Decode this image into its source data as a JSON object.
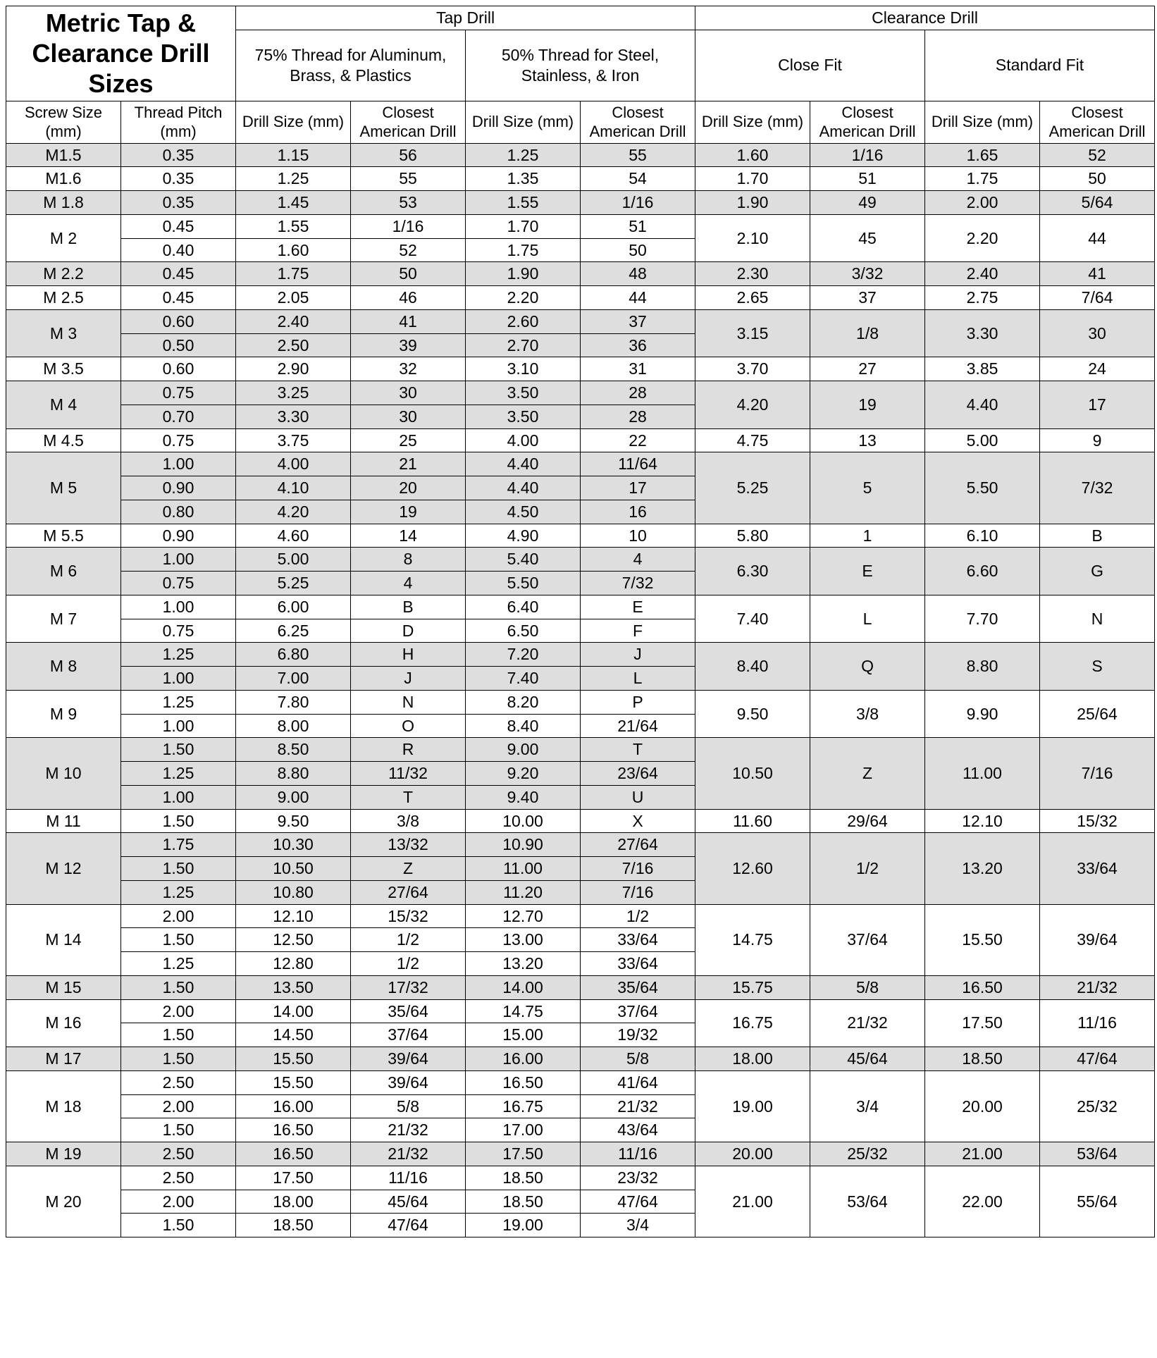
{
  "title": "Metric Tap & Clearance Drill Sizes",
  "top_headers": {
    "tap_drill": "Tap Drill",
    "clearance_drill": "Clearance Drill"
  },
  "sub_headers": {
    "thread75": "75% Thread for Aluminum, Brass, & Plastics",
    "thread50": "50% Thread for Steel, Stainless, & Iron",
    "close_fit": "Close Fit",
    "standard_fit": "Standard Fit"
  },
  "col_headers": {
    "screw_size": "Screw Size (mm)",
    "thread_pitch": "Thread Pitch (mm)",
    "drill_size": "Drill Size (mm)",
    "closest_american": "Closest American Drill"
  },
  "rows": [
    {
      "shaded": true,
      "screw": "M1.5",
      "pitches": [
        {
          "pitch": "0.35",
          "t75_size": "1.15",
          "t75_am": "56",
          "t50_size": "1.25",
          "t50_am": "55"
        }
      ],
      "close_size": "1.60",
      "close_am": "1/16",
      "std_size": "1.65",
      "std_am": "52"
    },
    {
      "shaded": false,
      "screw": "M1.6",
      "pitches": [
        {
          "pitch": "0.35",
          "t75_size": "1.25",
          "t75_am": "55",
          "t50_size": "1.35",
          "t50_am": "54"
        }
      ],
      "close_size": "1.70",
      "close_am": "51",
      "std_size": "1.75",
      "std_am": "50"
    },
    {
      "shaded": true,
      "screw": "M 1.8",
      "pitches": [
        {
          "pitch": "0.35",
          "t75_size": "1.45",
          "t75_am": "53",
          "t50_size": "1.55",
          "t50_am": "1/16"
        }
      ],
      "close_size": "1.90",
      "close_am": "49",
      "std_size": "2.00",
      "std_am": "5/64"
    },
    {
      "shaded": false,
      "screw": "M 2",
      "pitches": [
        {
          "pitch": "0.45",
          "t75_size": "1.55",
          "t75_am": "1/16",
          "t50_size": "1.70",
          "t50_am": "51"
        },
        {
          "pitch": "0.40",
          "t75_size": "1.60",
          "t75_am": "52",
          "t50_size": "1.75",
          "t50_am": "50"
        }
      ],
      "close_size": "2.10",
      "close_am": "45",
      "std_size": "2.20",
      "std_am": "44"
    },
    {
      "shaded": true,
      "screw": "M 2.2",
      "pitches": [
        {
          "pitch": "0.45",
          "t75_size": "1.75",
          "t75_am": "50",
          "t50_size": "1.90",
          "t50_am": "48"
        }
      ],
      "close_size": "2.30",
      "close_am": "3/32",
      "std_size": "2.40",
      "std_am": "41"
    },
    {
      "shaded": false,
      "screw": "M 2.5",
      "pitches": [
        {
          "pitch": "0.45",
          "t75_size": "2.05",
          "t75_am": "46",
          "t50_size": "2.20",
          "t50_am": "44"
        }
      ],
      "close_size": "2.65",
      "close_am": "37",
      "std_size": "2.75",
      "std_am": "7/64"
    },
    {
      "shaded": true,
      "screw": "M 3",
      "pitches": [
        {
          "pitch": "0.60",
          "t75_size": "2.40",
          "t75_am": "41",
          "t50_size": "2.60",
          "t50_am": "37"
        },
        {
          "pitch": "0.50",
          "t75_size": "2.50",
          "t75_am": "39",
          "t50_size": "2.70",
          "t50_am": "36"
        }
      ],
      "close_size": "3.15",
      "close_am": "1/8",
      "std_size": "3.30",
      "std_am": "30"
    },
    {
      "shaded": false,
      "screw": "M 3.5",
      "pitches": [
        {
          "pitch": "0.60",
          "t75_size": "2.90",
          "t75_am": "32",
          "t50_size": "3.10",
          "t50_am": "31"
        }
      ],
      "close_size": "3.70",
      "close_am": "27",
      "std_size": "3.85",
      "std_am": "24"
    },
    {
      "shaded": true,
      "screw": "M 4",
      "pitches": [
        {
          "pitch": "0.75",
          "t75_size": "3.25",
          "t75_am": "30",
          "t50_size": "3.50",
          "t50_am": "28"
        },
        {
          "pitch": "0.70",
          "t75_size": "3.30",
          "t75_am": "30",
          "t50_size": "3.50",
          "t50_am": "28"
        }
      ],
      "close_size": "4.20",
      "close_am": "19",
      "std_size": "4.40",
      "std_am": "17"
    },
    {
      "shaded": false,
      "screw": "M 4.5",
      "pitches": [
        {
          "pitch": "0.75",
          "t75_size": "3.75",
          "t75_am": "25",
          "t50_size": "4.00",
          "t50_am": "22"
        }
      ],
      "close_size": "4.75",
      "close_am": "13",
      "std_size": "5.00",
      "std_am": "9"
    },
    {
      "shaded": true,
      "screw": "M 5",
      "pitches": [
        {
          "pitch": "1.00",
          "t75_size": "4.00",
          "t75_am": "21",
          "t50_size": "4.40",
          "t50_am": "11/64"
        },
        {
          "pitch": "0.90",
          "t75_size": "4.10",
          "t75_am": "20",
          "t50_size": "4.40",
          "t50_am": "17"
        },
        {
          "pitch": "0.80",
          "t75_size": "4.20",
          "t75_am": "19",
          "t50_size": "4.50",
          "t50_am": "16"
        }
      ],
      "close_size": "5.25",
      "close_am": "5",
      "std_size": "5.50",
      "std_am": "7/32"
    },
    {
      "shaded": false,
      "screw": "M 5.5",
      "pitches": [
        {
          "pitch": "0.90",
          "t75_size": "4.60",
          "t75_am": "14",
          "t50_size": "4.90",
          "t50_am": "10"
        }
      ],
      "close_size": "5.80",
      "close_am": "1",
      "std_size": "6.10",
      "std_am": "B"
    },
    {
      "shaded": true,
      "screw": "M 6",
      "pitches": [
        {
          "pitch": "1.00",
          "t75_size": "5.00",
          "t75_am": "8",
          "t50_size": "5.40",
          "t50_am": "4"
        },
        {
          "pitch": "0.75",
          "t75_size": "5.25",
          "t75_am": "4",
          "t50_size": "5.50",
          "t50_am": "7/32"
        }
      ],
      "close_size": "6.30",
      "close_am": "E",
      "std_size": "6.60",
      "std_am": "G"
    },
    {
      "shaded": false,
      "screw": "M 7",
      "pitches": [
        {
          "pitch": "1.00",
          "t75_size": "6.00",
          "t75_am": "B",
          "t50_size": "6.40",
          "t50_am": "E"
        },
        {
          "pitch": "0.75",
          "t75_size": "6.25",
          "t75_am": "D",
          "t50_size": "6.50",
          "t50_am": "F"
        }
      ],
      "close_size": "7.40",
      "close_am": "L",
      "std_size": "7.70",
      "std_am": "N"
    },
    {
      "shaded": true,
      "screw": "M 8",
      "pitches": [
        {
          "pitch": "1.25",
          "t75_size": "6.80",
          "t75_am": "H",
          "t50_size": "7.20",
          "t50_am": "J"
        },
        {
          "pitch": "1.00",
          "t75_size": "7.00",
          "t75_am": "J",
          "t50_size": "7.40",
          "t50_am": "L"
        }
      ],
      "close_size": "8.40",
      "close_am": "Q",
      "std_size": "8.80",
      "std_am": "S"
    },
    {
      "shaded": false,
      "screw": "M 9",
      "pitches": [
        {
          "pitch": "1.25",
          "t75_size": "7.80",
          "t75_am": "N",
          "t50_size": "8.20",
          "t50_am": "P"
        },
        {
          "pitch": "1.00",
          "t75_size": "8.00",
          "t75_am": "O",
          "t50_size": "8.40",
          "t50_am": "21/64"
        }
      ],
      "close_size": "9.50",
      "close_am": "3/8",
      "std_size": "9.90",
      "std_am": "25/64"
    },
    {
      "shaded": true,
      "screw": "M 10",
      "pitches": [
        {
          "pitch": "1.50",
          "t75_size": "8.50",
          "t75_am": "R",
          "t50_size": "9.00",
          "t50_am": "T"
        },
        {
          "pitch": "1.25",
          "t75_size": "8.80",
          "t75_am": "11/32",
          "t50_size": "9.20",
          "t50_am": "23/64"
        },
        {
          "pitch": "1.00",
          "t75_size": "9.00",
          "t75_am": "T",
          "t50_size": "9.40",
          "t50_am": "U"
        }
      ],
      "close_size": "10.50",
      "close_am": "Z",
      "std_size": "11.00",
      "std_am": "7/16"
    },
    {
      "shaded": false,
      "screw": "M 11",
      "pitches": [
        {
          "pitch": "1.50",
          "t75_size": "9.50",
          "t75_am": "3/8",
          "t50_size": "10.00",
          "t50_am": "X"
        }
      ],
      "close_size": "11.60",
      "close_am": "29/64",
      "std_size": "12.10",
      "std_am": "15/32"
    },
    {
      "shaded": true,
      "screw": "M 12",
      "pitches": [
        {
          "pitch": "1.75",
          "t75_size": "10.30",
          "t75_am": "13/32",
          "t50_size": "10.90",
          "t50_am": "27/64"
        },
        {
          "pitch": "1.50",
          "t75_size": "10.50",
          "t75_am": "Z",
          "t50_size": "11.00",
          "t50_am": "7/16"
        },
        {
          "pitch": "1.25",
          "t75_size": "10.80",
          "t75_am": "27/64",
          "t50_size": "11.20",
          "t50_am": "7/16"
        }
      ],
      "close_size": "12.60",
      "close_am": "1/2",
      "std_size": "13.20",
      "std_am": "33/64"
    },
    {
      "shaded": false,
      "screw": "M 14",
      "pitches": [
        {
          "pitch": "2.00",
          "t75_size": "12.10",
          "t75_am": "15/32",
          "t50_size": "12.70",
          "t50_am": "1/2"
        },
        {
          "pitch": "1.50",
          "t75_size": "12.50",
          "t75_am": "1/2",
          "t50_size": "13.00",
          "t50_am": "33/64"
        },
        {
          "pitch": "1.25",
          "t75_size": "12.80",
          "t75_am": "1/2",
          "t50_size": "13.20",
          "t50_am": "33/64"
        }
      ],
      "close_size": "14.75",
      "close_am": "37/64",
      "std_size": "15.50",
      "std_am": "39/64"
    },
    {
      "shaded": true,
      "screw": "M 15",
      "pitches": [
        {
          "pitch": "1.50",
          "t75_size": "13.50",
          "t75_am": "17/32",
          "t50_size": "14.00",
          "t50_am": "35/64"
        }
      ],
      "close_size": "15.75",
      "close_am": "5/8",
      "std_size": "16.50",
      "std_am": "21/32"
    },
    {
      "shaded": false,
      "screw": "M 16",
      "pitches": [
        {
          "pitch": "2.00",
          "t75_size": "14.00",
          "t75_am": "35/64",
          "t50_size": "14.75",
          "t50_am": "37/64"
        },
        {
          "pitch": "1.50",
          "t75_size": "14.50",
          "t75_am": "37/64",
          "t50_size": "15.00",
          "t50_am": "19/32"
        }
      ],
      "close_size": "16.75",
      "close_am": "21/32",
      "std_size": "17.50",
      "std_am": "11/16"
    },
    {
      "shaded": true,
      "screw": "M 17",
      "pitches": [
        {
          "pitch": "1.50",
          "t75_size": "15.50",
          "t75_am": "39/64",
          "t50_size": "16.00",
          "t50_am": "5/8"
        }
      ],
      "close_size": "18.00",
      "close_am": "45/64",
      "std_size": "18.50",
      "std_am": "47/64"
    },
    {
      "shaded": false,
      "screw": "M 18",
      "pitches": [
        {
          "pitch": "2.50",
          "t75_size": "15.50",
          "t75_am": "39/64",
          "t50_size": "16.50",
          "t50_am": "41/64"
        },
        {
          "pitch": "2.00",
          "t75_size": "16.00",
          "t75_am": "5/8",
          "t50_size": "16.75",
          "t50_am": "21/32"
        },
        {
          "pitch": "1.50",
          "t75_size": "16.50",
          "t75_am": "21/32",
          "t50_size": "17.00",
          "t50_am": "43/64"
        }
      ],
      "close_size": "19.00",
      "close_am": "3/4",
      "std_size": "20.00",
      "std_am": "25/32"
    },
    {
      "shaded": true,
      "screw": "M 19",
      "pitches": [
        {
          "pitch": "2.50",
          "t75_size": "16.50",
          "t75_am": "21/32",
          "t50_size": "17.50",
          "t50_am": "11/16"
        }
      ],
      "close_size": "20.00",
      "close_am": "25/32",
      "std_size": "21.00",
      "std_am": "53/64"
    },
    {
      "shaded": false,
      "screw": "M 20",
      "pitches": [
        {
          "pitch": "2.50",
          "t75_size": "17.50",
          "t75_am": "11/16",
          "t50_size": "18.50",
          "t50_am": "23/32"
        },
        {
          "pitch": "2.00",
          "t75_size": "18.00",
          "t75_am": "45/64",
          "t50_size": "18.50",
          "t50_am": "47/64"
        },
        {
          "pitch": "1.50",
          "t75_size": "18.50",
          "t75_am": "47/64",
          "t50_size": "19.00",
          "t50_am": "3/4"
        }
      ],
      "close_size": "21.00",
      "close_am": "53/64",
      "std_size": "22.00",
      "std_am": "55/64"
    }
  ]
}
